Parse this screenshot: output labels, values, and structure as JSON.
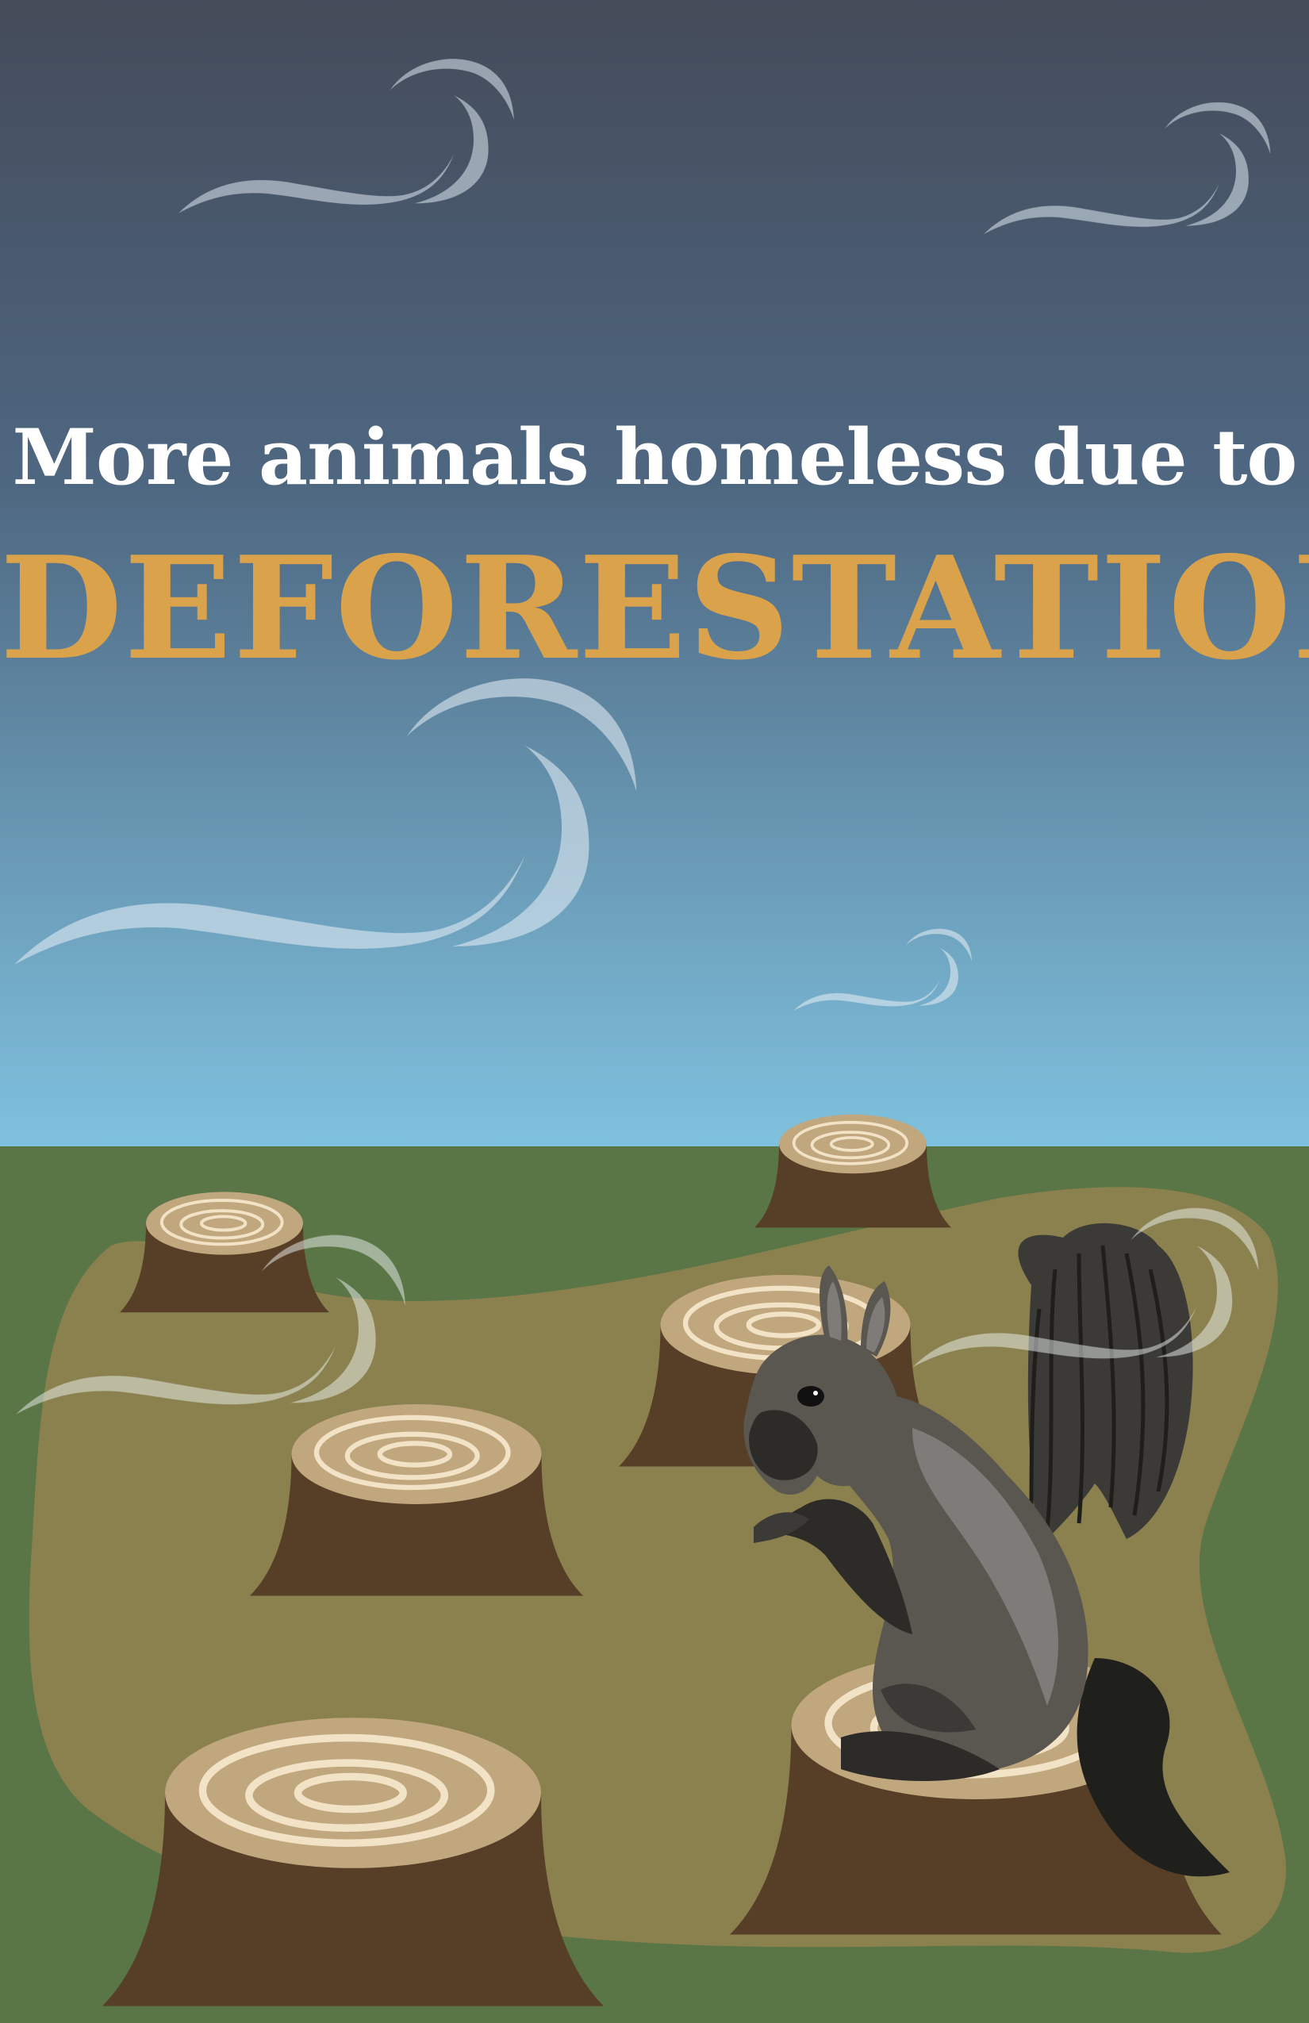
{
  "headline": {
    "line1": "More animals homeless due to",
    "line2": "DEFORESTATION"
  },
  "colors": {
    "sky_top": "#444b59",
    "sky_mid": "#4e6781",
    "sky_bottom": "#7fc2df",
    "ground_green": "#5a7546",
    "ground_dirt": "#8a814f",
    "stump_bark": "#573e27",
    "stump_top": "#c0a77e",
    "stump_rings": "#f2e2c6",
    "squirrel_body": "#5a5650",
    "squirrel_light": "#7f7b78",
    "squirrel_dark": "#2c2b27",
    "wind": "#dfeaf2",
    "title_light": "#ffffff",
    "title_accent": "#dba24c"
  },
  "illustration": {
    "icons": [
      "wind-swirl",
      "tree-stump",
      "squirrel"
    ]
  }
}
